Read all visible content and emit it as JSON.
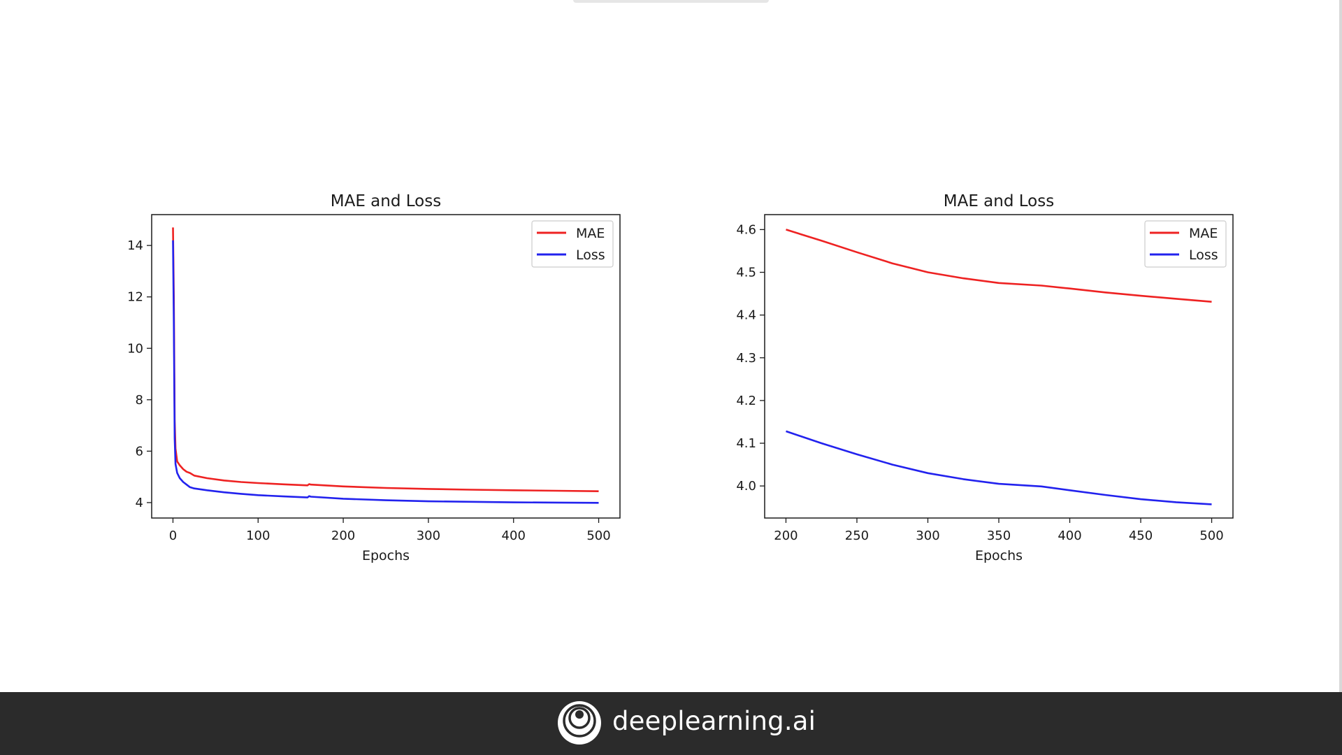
{
  "chart_data": [
    {
      "type": "line",
      "title": "MAE and Loss",
      "xlabel": "Epochs",
      "ylabel": "",
      "xlim": [
        -25,
        525
      ],
      "ylim": [
        3.4,
        15.2
      ],
      "xticks": [
        0,
        100,
        200,
        300,
        400,
        500
      ],
      "yticks": [
        4,
        6,
        8,
        10,
        12,
        14
      ],
      "grid": false,
      "legend_position": "top-right",
      "series": [
        {
          "name": "MAE",
          "color": "#ee2222",
          "x": [
            0,
            1,
            2,
            3,
            5,
            8,
            12,
            16,
            20,
            25,
            40,
            60,
            80,
            100,
            130,
            158,
            160,
            162,
            200,
            250,
            300,
            350,
            400,
            450,
            500
          ],
          "y": [
            14.7,
            12.0,
            7.2,
            6.1,
            5.6,
            5.45,
            5.3,
            5.2,
            5.15,
            5.05,
            4.95,
            4.86,
            4.8,
            4.76,
            4.71,
            4.67,
            4.72,
            4.7,
            4.63,
            4.57,
            4.53,
            4.5,
            4.48,
            4.46,
            4.44
          ]
        },
        {
          "name": "Loss",
          "color": "#2222ee",
          "x": [
            0,
            1,
            2,
            3,
            5,
            8,
            12,
            16,
            20,
            25,
            40,
            60,
            80,
            100,
            130,
            158,
            160,
            162,
            200,
            250,
            300,
            350,
            400,
            450,
            500
          ],
          "y": [
            14.2,
            11.0,
            6.5,
            5.5,
            5.15,
            4.95,
            4.8,
            4.7,
            4.6,
            4.55,
            4.48,
            4.4,
            4.34,
            4.29,
            4.24,
            4.2,
            4.25,
            4.23,
            4.15,
            4.09,
            4.05,
            4.03,
            4.01,
            4.0,
            3.99
          ]
        }
      ]
    },
    {
      "type": "line",
      "title": "MAE and Loss",
      "xlabel": "Epochs",
      "ylabel": "",
      "xlim": [
        185,
        515
      ],
      "ylim": [
        3.925,
        4.635
      ],
      "xticks": [
        200,
        250,
        300,
        350,
        400,
        450,
        500
      ],
      "yticks": [
        4.0,
        4.1,
        4.2,
        4.3,
        4.4,
        4.5,
        4.6
      ],
      "grid": false,
      "legend_position": "top-right",
      "series": [
        {
          "name": "MAE",
          "color": "#ee2222",
          "x": [
            200,
            225,
            250,
            275,
            300,
            325,
            350,
            380,
            400,
            425,
            450,
            475,
            500
          ],
          "y": [
            4.6,
            4.574,
            4.547,
            4.521,
            4.5,
            4.486,
            4.475,
            4.469,
            4.462,
            4.453,
            4.445,
            4.438,
            4.431
          ]
        },
        {
          "name": "Loss",
          "color": "#2222ee",
          "x": [
            200,
            225,
            250,
            275,
            300,
            325,
            350,
            380,
            400,
            425,
            450,
            475,
            500
          ],
          "y": [
            4.128,
            4.1,
            4.074,
            4.05,
            4.03,
            4.016,
            4.005,
            3.999,
            3.99,
            3.979,
            3.969,
            3.962,
            3.957
          ]
        }
      ]
    }
  ],
  "footer": {
    "brand": "deeplearning.ai",
    "logo_icon": "deeplearning-ai-logo-icon",
    "background": "#2b2b2b"
  }
}
